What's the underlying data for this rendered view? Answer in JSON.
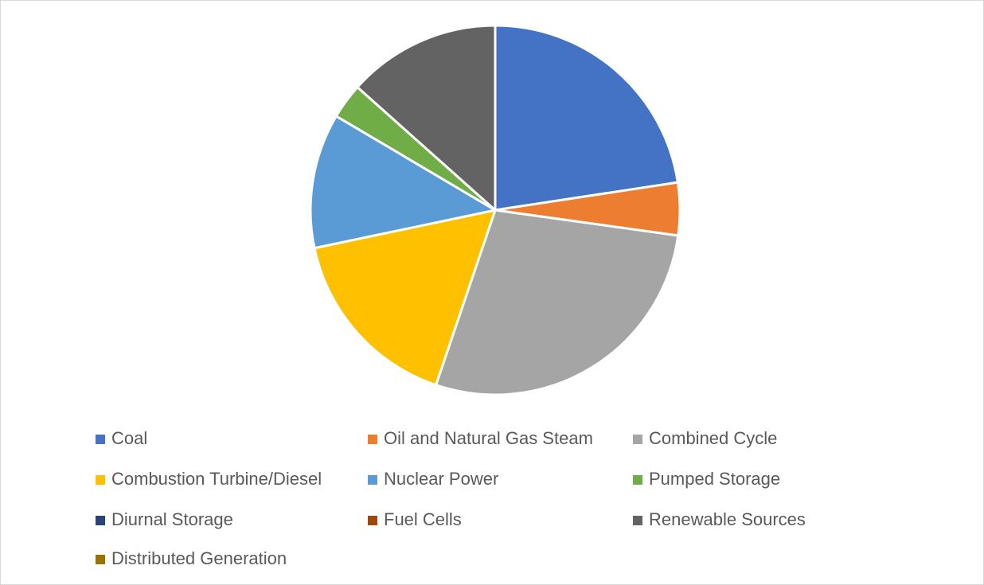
{
  "chart_data": {
    "type": "pie",
    "categories": [
      "Coal",
      "Oil and Natural Gas Steam",
      "Combined Cycle",
      "Combustion Turbine/Diesel",
      "Nuclear Power",
      "Pumped Storage",
      "Diurnal Storage",
      "Fuel Cells",
      "Renewable Sources",
      "Distributed Generation"
    ],
    "values": [
      22.6,
      4.6,
      28.0,
      16.5,
      11.8,
      3.1,
      0,
      0,
      13.4,
      0
    ],
    "colors": [
      "#4472c4",
      "#ed7d31",
      "#a5a5a5",
      "#ffc000",
      "#5b9bd5",
      "#70ad47",
      "#264478",
      "#9e480e",
      "#636363",
      "#997300"
    ],
    "legend": "bottom"
  }
}
